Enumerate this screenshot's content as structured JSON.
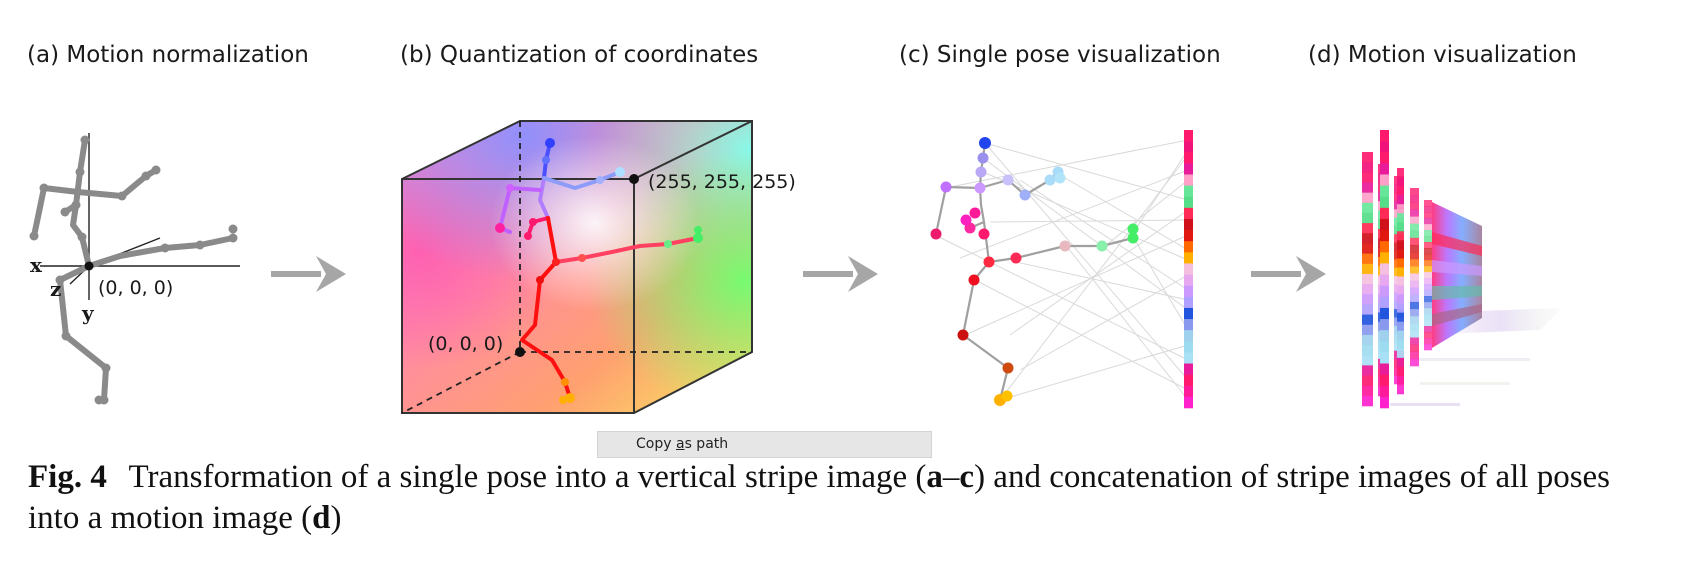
{
  "panels": {
    "a": {
      "title": "(a) Motion normalization",
      "origin_label": "(0, 0, 0)",
      "axis_x": "x",
      "axis_y": "y",
      "axis_z": "z"
    },
    "b": {
      "title": "(b) Quantization of coordinates",
      "max_label": "(255, 255, 255)",
      "min_label": "(0, 0, 0)"
    },
    "c": {
      "title": "(c) Single pose visualization"
    },
    "d": {
      "title": "(d) Motion visualization"
    }
  },
  "tooltip": {
    "prefix": "Copy ",
    "accel": "a",
    "suffix": "s path"
  },
  "caption": {
    "fig_label": "Fig. 4",
    "text_1": "Transformation of a single pose into a vertical stripe image (",
    "bold_1": "a",
    "dash": "–",
    "bold_2": "c",
    "text_2": ") and concatenation of stripe images of all poses into a motion image (",
    "bold_3": "d",
    "text_3": ")"
  },
  "colors": {
    "skeleton_gray": "#8a8a8a",
    "arrow_gray": "#a6a6a6",
    "stripe": [
      "#ff1a6e",
      "#f2137a",
      "#ff1a6e",
      "#e81c9a",
      "#ffa0c8",
      "#66e699",
      "#55dd88",
      "#ff2a55",
      "#d0101a",
      "#e0180f",
      "#ff6a00",
      "#ffb000",
      "#f5c0e0",
      "#e8a8f0",
      "#cc99ff",
      "#b0a0ff",
      "#2255dd",
      "#8899ee",
      "#9fd0ee",
      "#9ddcf0",
      "#a8e0f5",
      "#e81c9a",
      "#ff1a6e",
      "#ff1a9a",
      "#ff22cc"
    ]
  }
}
